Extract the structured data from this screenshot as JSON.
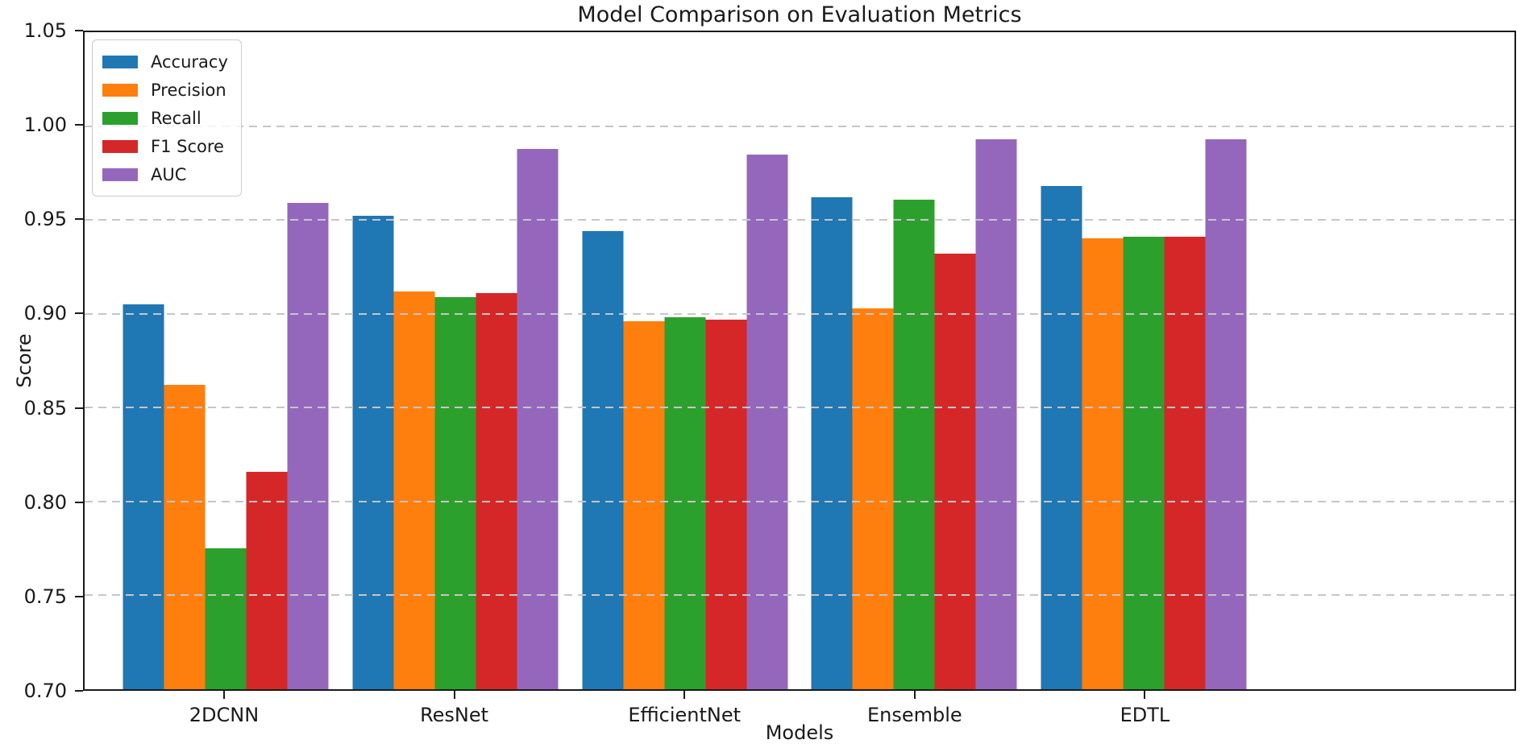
{
  "chart_data": {
    "type": "bar",
    "title": "Model Comparison on Evaluation Metrics",
    "xlabel": "Models",
    "ylabel": "Score",
    "ylim": [
      0.7,
      1.05
    ],
    "yticks": [
      "0.70",
      "0.75",
      "0.80",
      "0.85",
      "0.90",
      "0.95",
      "1.00",
      "1.05"
    ],
    "grid": "horizontal-dashed",
    "legend_position": "upper-left",
    "categories": [
      "2DCNN",
      "ResNet",
      "EfficientNet",
      "Ensemble",
      "EDTL"
    ],
    "series": [
      {
        "name": "Accuracy",
        "color": "#1f77b4",
        "values": [
          0.905,
          0.952,
          0.944,
          0.962,
          0.968
        ]
      },
      {
        "name": "Precision",
        "color": "#ff7f0e",
        "values": [
          0.862,
          0.912,
          0.896,
          0.903,
          0.94
        ]
      },
      {
        "name": "Recall",
        "color": "#2ca02c",
        "values": [
          0.775,
          0.909,
          0.898,
          0.961,
          0.941
        ]
      },
      {
        "name": "F1 Score",
        "color": "#d62728",
        "values": [
          0.816,
          0.911,
          0.897,
          0.932,
          0.941
        ]
      },
      {
        "name": "AUC",
        "color": "#9467bd",
        "values": [
          0.959,
          0.988,
          0.985,
          0.993,
          0.993
        ]
      }
    ]
  },
  "colors": {
    "grid": "#c6c6c6",
    "spine": "#1a1a1a",
    "text": "#1a1a1a",
    "legend_border": "#cccccc"
  }
}
